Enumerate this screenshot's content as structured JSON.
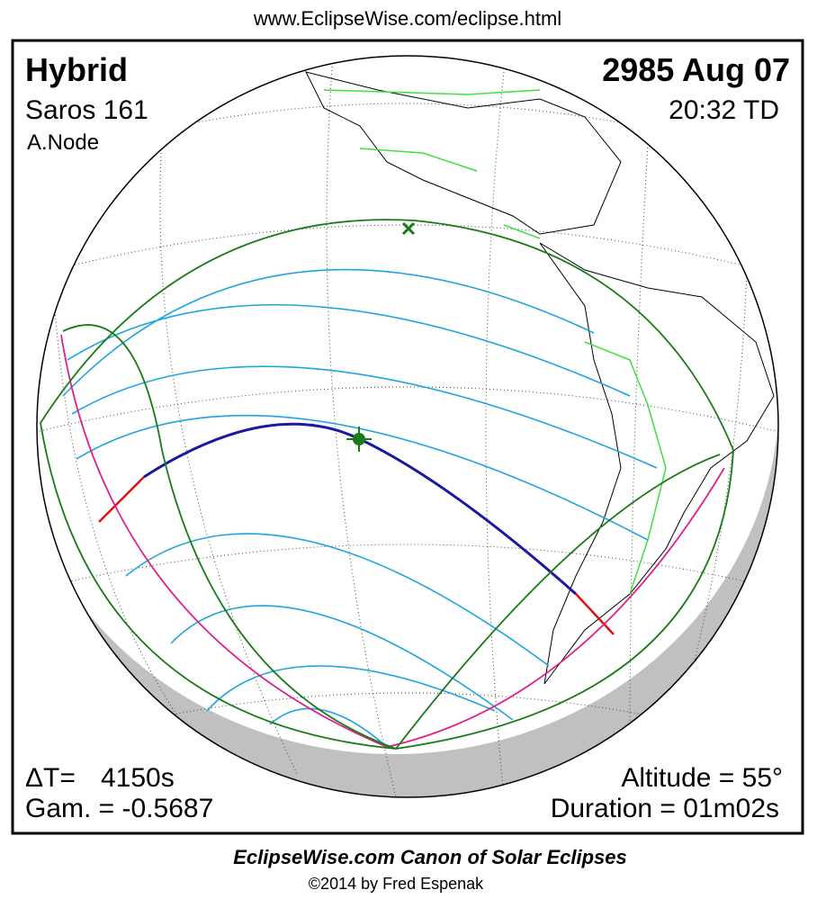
{
  "header": {
    "url": "www.EclipseWise.com/eclipse.html"
  },
  "eclipse": {
    "type": "Hybrid",
    "date": "2985 Aug 07",
    "saros": "Saros 161",
    "time": "20:32 TD",
    "node": "A.Node",
    "delta_t_label": "ΔT=",
    "delta_t": "4150s",
    "gamma": "Gam. = -0.5687",
    "altitude": "Altitude = 55°",
    "duration": "Duration = 01m02s"
  },
  "footer": {
    "title": "EclipseWise.com Canon of Solar Eclipses",
    "copyright": "©2014 by Fred Espenak"
  }
}
